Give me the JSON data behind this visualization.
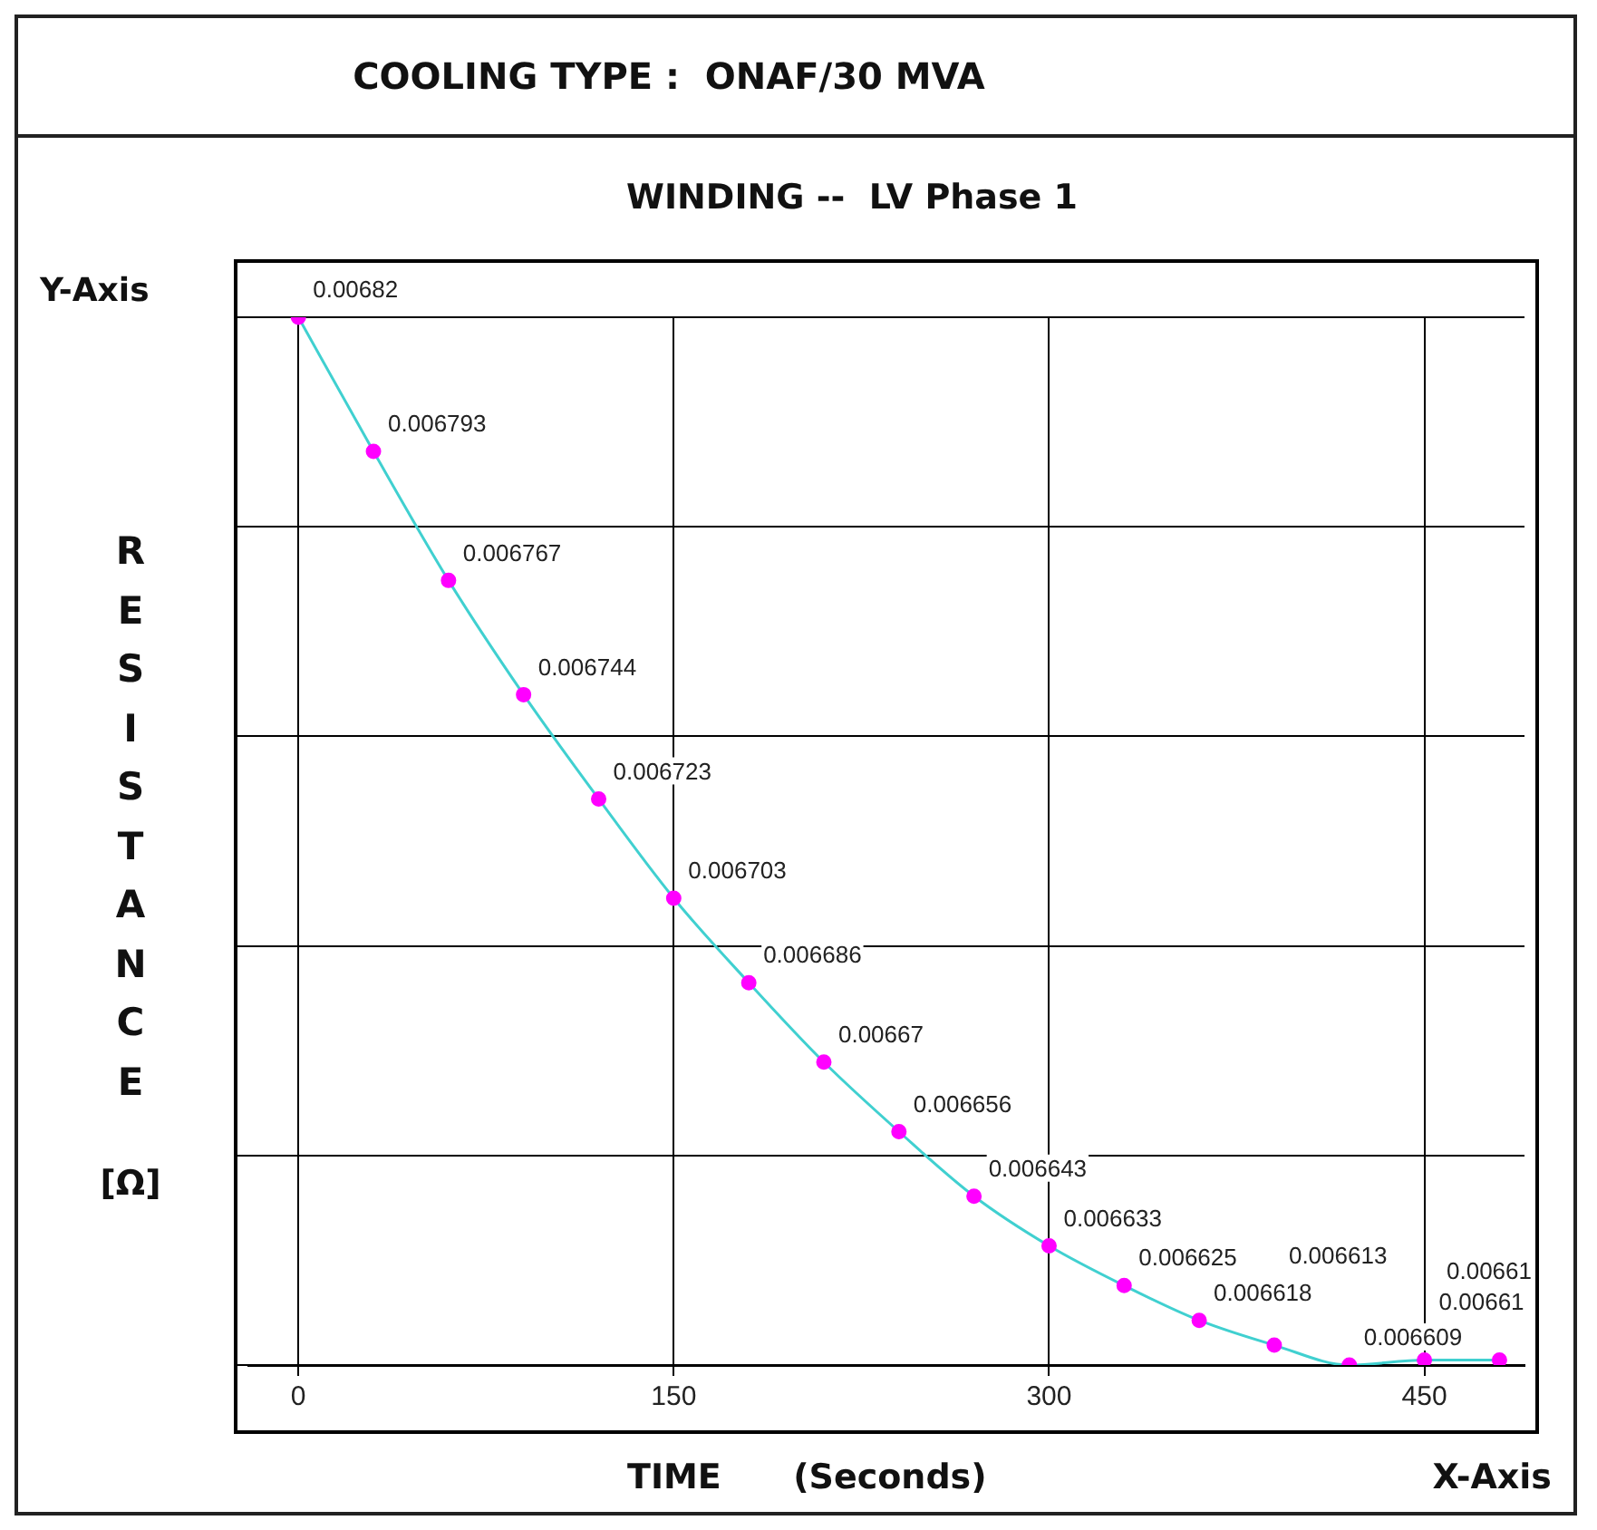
{
  "chart_data": {
    "type": "line",
    "title": "COOLING TYPE :  ONAF/30 MVA",
    "subtitle": "WINDING --  LV Phase 1",
    "xlabel": "TIME      (Seconds)",
    "ylabel": "RESISTANCE [Ω]",
    "annotations": [
      "Y-Axis",
      "X-Axis"
    ],
    "x": [
      0,
      30,
      60,
      90,
      120,
      150,
      180,
      210,
      240,
      270,
      300,
      330,
      360,
      390,
      420,
      450,
      480
    ],
    "series": [
      {
        "color": "#40d0d0",
        "values": [
          0.00682,
          0.006793,
          0.006767,
          0.006744,
          0.006723,
          0.006703,
          0.006686,
          0.00667,
          0.006656,
          0.006643,
          0.006633,
          0.006625,
          0.006618,
          0.006613,
          0.006609,
          0.00661,
          0.00661
        ]
      }
    ],
    "xlim": [
      -20,
      490
    ],
    "xticks": [
      0,
      150,
      300,
      450
    ],
    "ylim": [
      0.006609,
      0.00682
    ],
    "yticks": [
      {
        "value": 0.006609,
        "label": null
      },
      {
        "value": 0.0066512,
        "label": null
      },
      {
        "value": 0.0066934,
        "label": null
      },
      {
        "value": 0.0067356,
        "label": null
      },
      {
        "value": 0.0067778,
        "label": null
      },
      {
        "value": 0.00682,
        "label": null
      }
    ],
    "tick_labels": "x",
    "grid": true,
    "legend": false,
    "marker": "circle",
    "line_style": "solid",
    "data_labels": true
  }
}
